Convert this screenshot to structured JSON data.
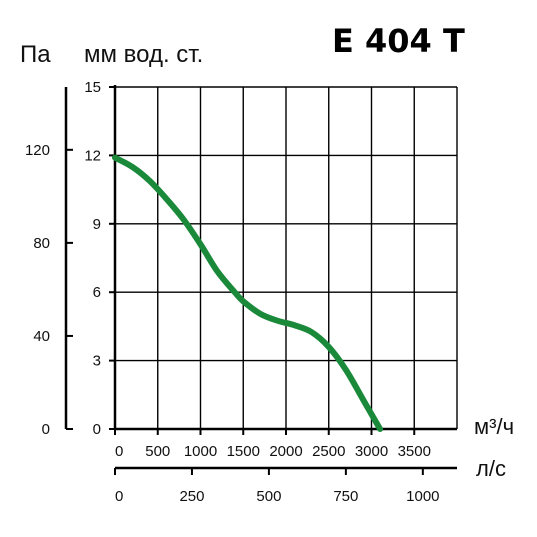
{
  "chart_data": {
    "type": "line",
    "title": "E 404 T",
    "pa_label": "Па",
    "mm_label": "мм вод. ст.",
    "x_unit_label": "м³/ч",
    "x2_unit_label": "л/с",
    "x_ticks": [
      "0",
      "500",
      "1000",
      "1500",
      "2000",
      "2500",
      "3000",
      "3500"
    ],
    "x2_ticks": [
      "0",
      "250",
      "500",
      "750",
      "1000"
    ],
    "y_ticks": [
      "0",
      "3",
      "6",
      "9",
      "12",
      "15"
    ],
    "y2_ticks": [
      "0",
      "40",
      "80",
      "120"
    ],
    "xlim": [
      0,
      4000
    ],
    "ylim": [
      0,
      15
    ],
    "x2lim": [
      0,
      1111
    ],
    "y2lim": [
      0,
      147
    ],
    "grid": true,
    "line_color": "#1a8a3a",
    "series": [
      {
        "name": "",
        "x": [
          0,
          200,
          400,
          600,
          800,
          1000,
          1200,
          1400,
          1500,
          1700,
          1900,
          2100,
          2300,
          2500,
          2700,
          2900,
          3100
        ],
        "y": [
          11.9,
          11.5,
          10.9,
          10.1,
          9.2,
          8.1,
          6.9,
          6.0,
          5.6,
          5.05,
          4.75,
          4.55,
          4.25,
          3.6,
          2.6,
          1.3,
          0
        ]
      }
    ]
  }
}
